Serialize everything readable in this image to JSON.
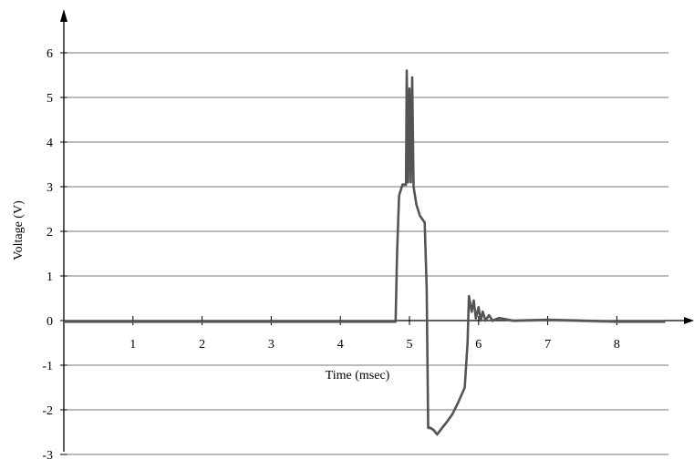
{
  "chart_data": {
    "type": "line",
    "title": "",
    "xlabel": "Time (msec)",
    "ylabel": "Voltage (V)",
    "xlim": [
      0,
      8.7
    ],
    "ylim": [
      -3,
      6.8
    ],
    "x_ticks": [
      1,
      2,
      3,
      4,
      5,
      6,
      7,
      8
    ],
    "y_ticks": [
      -3,
      -2,
      -1,
      0,
      1,
      2,
      3,
      4,
      5,
      6
    ],
    "grid": "horizontal",
    "legend": "none",
    "series": [
      {
        "color": "#555555",
        "points": [
          [
            0.0,
            -0.02
          ],
          [
            4.8,
            -0.02
          ],
          [
            4.82,
            1.5
          ],
          [
            4.85,
            2.8
          ],
          [
            4.9,
            3.05
          ],
          [
            4.95,
            3.05
          ],
          [
            4.96,
            5.6
          ],
          [
            4.98,
            3.1
          ],
          [
            5.0,
            5.2
          ],
          [
            5.02,
            3.1
          ],
          [
            5.04,
            5.45
          ],
          [
            5.06,
            3.0
          ],
          [
            5.1,
            2.6
          ],
          [
            5.15,
            2.35
          ],
          [
            5.22,
            2.2
          ],
          [
            5.25,
            0.7
          ],
          [
            5.27,
            -2.4
          ],
          [
            5.3,
            -2.4
          ],
          [
            5.35,
            -2.45
          ],
          [
            5.4,
            -2.55
          ],
          [
            5.45,
            -2.45
          ],
          [
            5.5,
            -2.35
          ],
          [
            5.55,
            -2.25
          ],
          [
            5.62,
            -2.1
          ],
          [
            5.7,
            -1.85
          ],
          [
            5.8,
            -1.5
          ],
          [
            5.84,
            -0.5
          ],
          [
            5.86,
            0.55
          ],
          [
            5.9,
            0.2
          ],
          [
            5.93,
            0.45
          ],
          [
            5.96,
            0.05
          ],
          [
            6.0,
            0.3
          ],
          [
            6.03,
            0.0
          ],
          [
            6.06,
            0.2
          ],
          [
            6.1,
            0.0
          ],
          [
            6.15,
            0.12
          ],
          [
            6.2,
            0.0
          ],
          [
            6.3,
            0.06
          ],
          [
            6.5,
            0.0
          ],
          [
            7.0,
            0.02
          ],
          [
            8.0,
            -0.02
          ],
          [
            8.7,
            -0.02
          ]
        ]
      }
    ]
  }
}
